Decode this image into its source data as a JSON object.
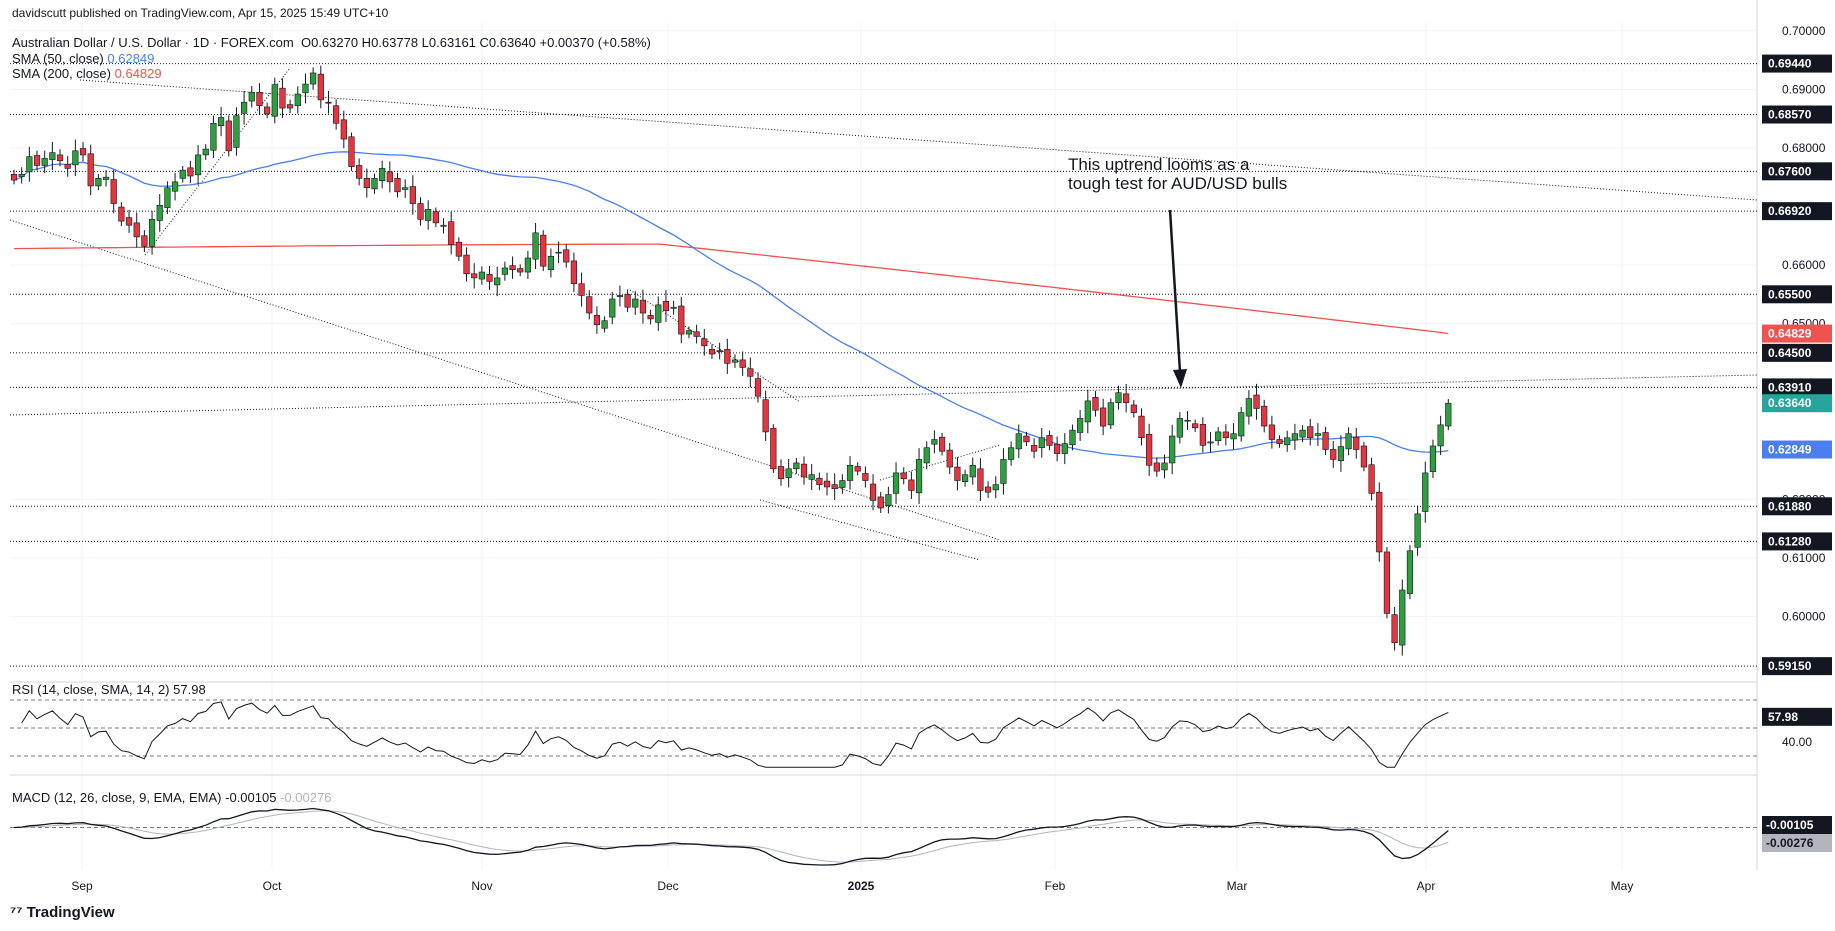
{
  "header": {
    "published": "davidscutt published on TradingView.com, Apr 15, 2025 15:49 UTC+10",
    "title": "Australian Dollar / U.S. Dollar · 1D · FOREX.com",
    "ohlc": "O0.63270 H0.63778 L0.63161 C0.63640 +0.00370 (+0.58%)",
    "sma50_label": "SMA (50, close)",
    "sma50_value": "0.62849",
    "sma200_label": "SMA (200, close)",
    "sma200_value": "0.64829",
    "rsi_label": "RSI (14, close, SMA, 14, 2)",
    "rsi_value": "57.98",
    "macd_label": "MACD (12, 26, close, 9, EMA, EMA)",
    "macd_value": "-0.00105",
    "macd_signal_value": "-0.00276"
  },
  "annotation": {
    "line1": "This uptrend looms as a",
    "line2": "tough test for AUD/USD bulls"
  },
  "footer": {
    "brand": "TradingView"
  },
  "colors": {
    "up": "#26a69a",
    "up_fill": "#2e9e3e",
    "down": "#e5353f",
    "sma50": "#4a7ff0",
    "sma200": "#ef5350",
    "current": "#26a69a",
    "grid": "#f0f3fa",
    "axis_text": "#131722"
  },
  "chart_data": {
    "type": "candlestick",
    "symbol": "AUD/USD",
    "timeframe": "1D",
    "price_axis": {
      "ticks": [
        "0.70000",
        "0.69000",
        "0.68000",
        "0.66000",
        "0.65000",
        "0.62000",
        "0.61000",
        "0.60000"
      ],
      "range": [
        0.5905,
        0.7015
      ]
    },
    "time_axis": [
      "Sep",
      "Oct",
      "Nov",
      "Dec",
      "2025",
      "Feb",
      "Mar",
      "Apr",
      "May"
    ],
    "horizontal_levels": [
      "0.69440",
      "0.68570",
      "0.67600",
      "0.66920",
      "0.65500",
      "0.64500",
      "0.63910",
      "0.61880",
      "0.61280",
      "0.59150"
    ],
    "last_price": "0.63640",
    "sma50_last": "0.62849",
    "sma200_last": "0.64829",
    "candle_closes": [
      0.6745,
      0.6755,
      0.6785,
      0.677,
      0.6782,
      0.6792,
      0.6778,
      0.6765,
      0.6795,
      0.6788,
      0.6735,
      0.6748,
      0.675,
      0.6705,
      0.6675,
      0.6668,
      0.6648,
      0.6632,
      0.6678,
      0.6702,
      0.6732,
      0.6742,
      0.6762,
      0.6752,
      0.6788,
      0.6798,
      0.6842,
      0.6852,
      0.6795,
      0.6855,
      0.6878,
      0.6895,
      0.6872,
      0.6858,
      0.6908,
      0.6868,
      0.6868,
      0.6892,
      0.6909,
      0.6928,
      0.6882,
      0.6878,
      0.6842,
      0.6815,
      0.6768,
      0.6748,
      0.6732,
      0.6748,
      0.6765,
      0.6742,
      0.6725,
      0.6732,
      0.6705,
      0.6678,
      0.6695,
      0.6672,
      0.6668,
      0.6635,
      0.6615,
      0.6585,
      0.6578,
      0.6588,
      0.6572,
      0.6578,
      0.6595,
      0.6592,
      0.6588,
      0.6612,
      0.6655,
      0.6598,
      0.6615,
      0.6622,
      0.6605,
      0.6568,
      0.6548,
      0.6518,
      0.6498,
      0.6505,
      0.6542,
      0.6548,
      0.6528,
      0.6542,
      0.6518,
      0.6508,
      0.6532,
      0.6522,
      0.6528,
      0.6482,
      0.6488,
      0.6478,
      0.6462,
      0.6448,
      0.6452,
      0.6432,
      0.6438,
      0.6425,
      0.641,
      0.6376,
      0.6315,
      0.6252,
      0.6235,
      0.6252,
      0.6262,
      0.6238,
      0.6242,
      0.6225,
      0.6221,
      0.6218,
      0.6232,
      0.6258,
      0.6248,
      0.6232,
      0.6198,
      0.6185,
      0.6208,
      0.6245,
      0.6235,
      0.6215,
      0.6268,
      0.6288,
      0.6302,
      0.6282,
      0.6255,
      0.6232,
      0.6242,
      0.6258,
      0.6215,
      0.6212,
      0.6225,
      0.6268,
      0.6288,
      0.6312,
      0.6298,
      0.6282,
      0.6305,
      0.6292,
      0.6278,
      0.6295,
      0.6318,
      0.6338,
      0.6368,
      0.6352,
      0.6325,
      0.6365,
      0.6382,
      0.6365,
      0.6348,
      0.6305,
      0.6258,
      0.6248,
      0.6262,
      0.6308,
      0.6338,
      0.6335,
      0.6322,
      0.6292,
      0.6298,
      0.6315,
      0.6305,
      0.6312,
      0.6348,
      0.6372,
      0.6355,
      0.6325,
      0.6302,
      0.6295,
      0.6305,
      0.6312,
      0.6318,
      0.6305,
      0.6312,
      0.6285,
      0.6268,
      0.629,
      0.6312,
      0.6285,
      0.6255,
      0.621,
      0.611,
      0.6005,
      0.5955,
      0.6045,
      0.6112,
      0.6175,
      0.6245,
      0.6291,
      0.6327,
      0.6364
    ]
  }
}
